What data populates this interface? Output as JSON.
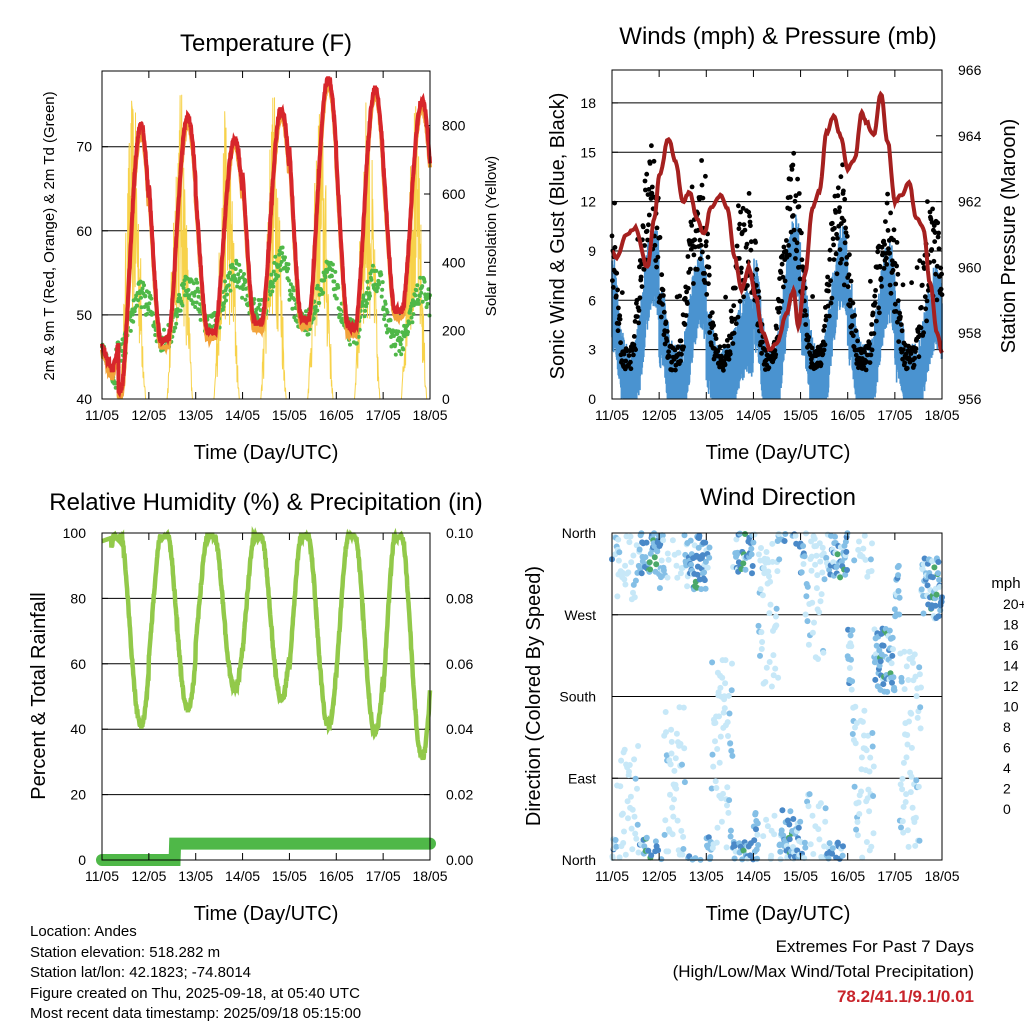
{
  "station_info": {
    "location": "Location: Andes",
    "elevation": "Station elevation: 518.282 m",
    "latlon": "Station lat/lon: 42.1823; -74.8014",
    "created": "Figure created on Thu, 2025-09-18, at 05:40 UTC",
    "recent": "Most recent data timestamp: 2025/09/18 05:15:00"
  },
  "extremes": {
    "title": "Extremes For Past 7 Days",
    "subtitle": "(High/Low/Max Wind/Total Precipitation)",
    "values": "78.2/41.1/9.1/0.01"
  },
  "colors": {
    "temp_red": "#d7262b",
    "temp_orange": "#f2a33a",
    "dewpoint_green": "#4fb848",
    "solar_yellow": "#f7d24a",
    "gust_black": "#000000",
    "wind_blue": "#4a93d0",
    "pressure_maroon": "#a5201f",
    "rh_green": "#92c94a",
    "precip_green": "#4fb848"
  },
  "chart_data": [
    {
      "type": "line",
      "title": "Temperature (F)",
      "xlabel": "Time (Day/UTC)",
      "ylabel": "2m & 9m T (Red, Orange) & 2m Td (Green)",
      "y2label": "Solar Insolation (Yellow)",
      "x_ticks": [
        "11/05",
        "12/05",
        "13/05",
        "14/05",
        "15/05",
        "16/05",
        "17/05",
        "18/05"
      ],
      "ylim": [
        40,
        79
      ],
      "yticks": [
        40,
        50,
        60,
        70
      ],
      "y2lim": [
        0,
        960
      ],
      "y2ticks": [
        0,
        200,
        400,
        600,
        800
      ],
      "daily_high_temp": [
        72.5,
        73.5,
        71.0,
        74.5,
        78.2,
        77.0,
        75.5
      ],
      "daily_low_temp": [
        41.1,
        47.0,
        48.0,
        49.0,
        49.5,
        48.5,
        50.5
      ],
      "daily_high_dewpoint": [
        52.5,
        53.5,
        55.0,
        56.5,
        55.0,
        54.5,
        53.0
      ],
      "daily_low_dewpoint": [
        41.5,
        44.0,
        45.5,
        47.0,
        46.0,
        44.5,
        43.5
      ],
      "daily_peak_solar": [
        900,
        940,
        880,
        920,
        890,
        910,
        900
      ],
      "series": [
        {
          "name": "2m T",
          "color": "#d7262b"
        },
        {
          "name": "9m T",
          "color": "#f2a33a"
        },
        {
          "name": "2m Td",
          "color": "#4fb848"
        },
        {
          "name": "Solar Insolation",
          "color": "#f7d24a"
        }
      ]
    },
    {
      "type": "line",
      "title": "Winds (mph) & Pressure (mb)",
      "xlabel": "Time (Day/UTC)",
      "ylabel": "Sonic Wind & Gust (Blue, Black)",
      "y2label": "Station Pressure (Maroon)",
      "x_ticks": [
        "11/05",
        "12/05",
        "13/05",
        "14/05",
        "15/05",
        "16/05",
        "17/05",
        "18/05"
      ],
      "ylim": [
        0,
        20
      ],
      "yticks": [
        0,
        3,
        6,
        9,
        12,
        15,
        18
      ],
      "y2lim": [
        956,
        966
      ],
      "y2ticks": [
        956,
        958,
        960,
        962,
        964,
        966
      ],
      "pressure_trace": {
        "x_day": [
          0,
          0.1,
          0.3,
          0.5,
          0.75,
          0.9,
          1.0,
          1.2,
          1.35,
          1.5,
          1.65,
          1.8,
          1.95,
          2.1,
          2.3,
          2.45,
          2.6,
          2.75,
          2.9,
          3.05,
          3.2,
          3.35,
          3.5,
          3.7,
          3.85,
          3.95,
          4.1,
          4.25,
          4.4,
          4.55,
          4.7,
          4.85,
          5.0,
          5.15,
          5.3,
          5.4,
          5.55,
          5.7,
          5.85,
          6.0,
          6.15,
          6.3,
          6.45,
          6.6,
          6.75,
          6.9,
          7.0
        ],
        "pressure": [
          960.5,
          960.3,
          961.0,
          961.2,
          960.0,
          961.5,
          962.8,
          963.9,
          963.2,
          962.0,
          962.3,
          961.5,
          961.0,
          961.8,
          962.2,
          961.8,
          960.3,
          959.3,
          960.0,
          959.1,
          958.0,
          957.5,
          957.7,
          958.6,
          959.3,
          958.2,
          959.8,
          961.8,
          962.3,
          964.1,
          964.6,
          964.0,
          963.0,
          963.3,
          964.7,
          964.4,
          964.0,
          965.3,
          963.8,
          962.0,
          962.2,
          962.6,
          961.5,
          961.2,
          959.5,
          958.0,
          957.4
        ]
      },
      "daily_peak_gust": [
        16.5,
        14.5,
        12.5,
        16.0,
        14.5,
        13.0,
        12.0
      ],
      "daily_peak_wind": [
        8.5,
        7.0,
        4.5,
        9.1,
        8.5,
        7.5,
        6.0
      ],
      "series": [
        {
          "name": "Sonic Wind",
          "color": "#4a93d0"
        },
        {
          "name": "Gust",
          "color": "#000000"
        },
        {
          "name": "Station Pressure",
          "color": "#a5201f"
        }
      ]
    },
    {
      "type": "line",
      "title": "Relative Humidity (%) & Precipitation (in)",
      "xlabel": "Time (Day/UTC)",
      "ylabel": "Percent & Total Rainfall",
      "x_ticks": [
        "11/05",
        "12/05",
        "13/05",
        "14/05",
        "15/05",
        "16/05",
        "17/05",
        "18/05"
      ],
      "ylim": [
        0,
        100
      ],
      "yticks": [
        0,
        20,
        40,
        60,
        80,
        100
      ],
      "y2lim": [
        0,
        0.1
      ],
      "y2ticks": [
        "0.00",
        "0.02",
        "0.04",
        "0.06",
        "0.08",
        "0.10"
      ],
      "daily_min_rh": [
        41,
        46,
        52,
        49,
        41,
        39,
        31
      ],
      "rh_max": 99,
      "precip_total": {
        "x_day": [
          0,
          1.55,
          1.56,
          7.0
        ],
        "inches": [
          0.0,
          0.0,
          0.005,
          0.005
        ]
      },
      "series": [
        {
          "name": "Relative Humidity",
          "color": "#92c94a"
        },
        {
          "name": "Total Rainfall",
          "color": "#4fb848"
        }
      ]
    },
    {
      "type": "scatter",
      "title": "Wind Direction",
      "xlabel": "Time (Day/UTC)",
      "ylabel": "Direction (Colored By Speed)",
      "x_ticks": [
        "11/05",
        "12/05",
        "13/05",
        "14/05",
        "15/05",
        "16/05",
        "17/05",
        "18/05"
      ],
      "yticks": [
        "North",
        "East",
        "South",
        "West",
        "North"
      ],
      "ylim": [
        0,
        360
      ],
      "colorbar_title": "mph",
      "colorbar_labels": [
        "0",
        "2",
        "4",
        "6",
        "8",
        "10",
        "12",
        "14",
        "16",
        "18",
        "20+"
      ],
      "colorbar_colors": [
        "#c7e8f8",
        "#84bfe6",
        "#4a89c8",
        "#4ba86a",
        "#6fbb4b",
        "#e6e052",
        "#f7a940",
        "#ef6a2a",
        "#dc3a27",
        "#c5212a",
        "#9e1b1e"
      ],
      "daily_wind_direction_deg": {
        "night": [
          20,
          60,
          120,
          300,
          330,
          60,
          120
        ],
        "day": [
          350,
          330,
          350,
          20,
          345,
          220,
          300
        ]
      }
    }
  ]
}
